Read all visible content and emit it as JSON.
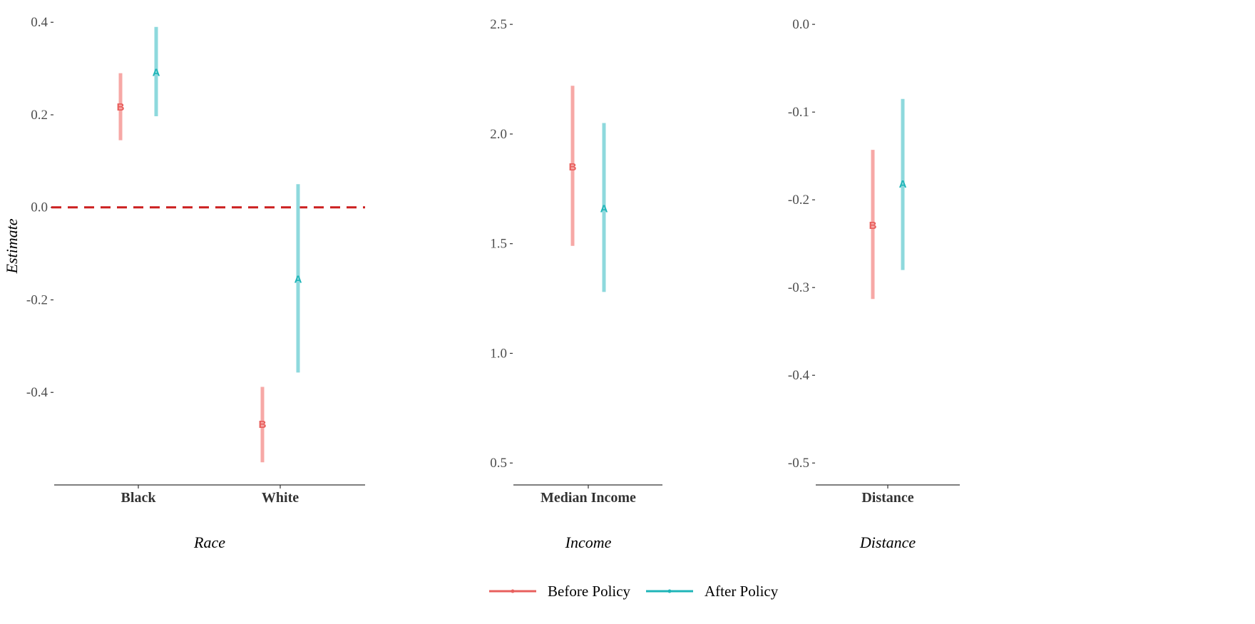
{
  "chart_data": [
    {
      "type": "errorbar",
      "xlabel": "Race",
      "ylabel": "Estimate",
      "ylim": [
        -0.6,
        0.405
      ],
      "yticks": [
        0.4,
        0.2,
        0.0,
        -0.2,
        -0.4
      ],
      "ytick_labels": [
        "0.4",
        "0.2",
        "0.0",
        "-0.2",
        "-0.4"
      ],
      "categories": [
        "Black",
        "White"
      ],
      "reference_line": 0.0,
      "series": [
        {
          "name": "Before Policy",
          "marker": "B",
          "values": [
            0.217,
            -0.469
          ],
          "lower": [
            0.145,
            -0.551
          ],
          "upper": [
            0.29,
            -0.388
          ]
        },
        {
          "name": "After Policy",
          "marker": "A",
          "values": [
            0.292,
            -0.155
          ],
          "lower": [
            0.197,
            -0.357
          ],
          "upper": [
            0.39,
            0.05
          ]
        }
      ]
    },
    {
      "type": "errorbar",
      "xlabel": "Income",
      "ylim": [
        0.4,
        2.52
      ],
      "yticks": [
        2.5,
        2.0,
        1.5,
        1.0,
        0.5
      ],
      "ytick_labels": [
        "2.5",
        "2.0",
        "1.5",
        "1.0",
        "0.5"
      ],
      "categories": [
        "Median Income"
      ],
      "series": [
        {
          "name": "Before Policy",
          "marker": "B",
          "values": [
            1.85
          ],
          "lower": [
            1.49
          ],
          "upper": [
            2.22
          ]
        },
        {
          "name": "After Policy",
          "marker": "A",
          "values": [
            1.66
          ],
          "lower": [
            1.28
          ],
          "upper": [
            2.05
          ]
        }
      ]
    },
    {
      "type": "errorbar",
      "xlabel": "Distance",
      "ylim": [
        -0.525,
        0.005
      ],
      "yticks": [
        0.0,
        -0.1,
        -0.2,
        -0.3,
        -0.4,
        -0.5
      ],
      "ytick_labels": [
        "0.0",
        "-0.1",
        "-0.2",
        "-0.3",
        "-0.4",
        "-0.5"
      ],
      "categories": [
        "Distance"
      ],
      "series": [
        {
          "name": "Before Policy",
          "marker": "B",
          "values": [
            -0.229
          ],
          "lower": [
            -0.313
          ],
          "upper": [
            -0.143
          ]
        },
        {
          "name": "After Policy",
          "marker": "A",
          "values": [
            -0.182
          ],
          "lower": [
            -0.28
          ],
          "upper": [
            -0.085
          ]
        }
      ]
    }
  ],
  "legend": {
    "placement": "bottom-center",
    "items": [
      {
        "label": "Before Policy",
        "color": "#e8605e"
      },
      {
        "label": "After Policy",
        "color": "#1fb5b8"
      }
    ]
  },
  "colors": {
    "before_bar": "#f7a8a6",
    "before_text": "#e8605e",
    "after_bar": "#8ed9dd",
    "after_text": "#1fb5b8",
    "reference_line": "#cc1f1f",
    "axis": "#333333"
  }
}
